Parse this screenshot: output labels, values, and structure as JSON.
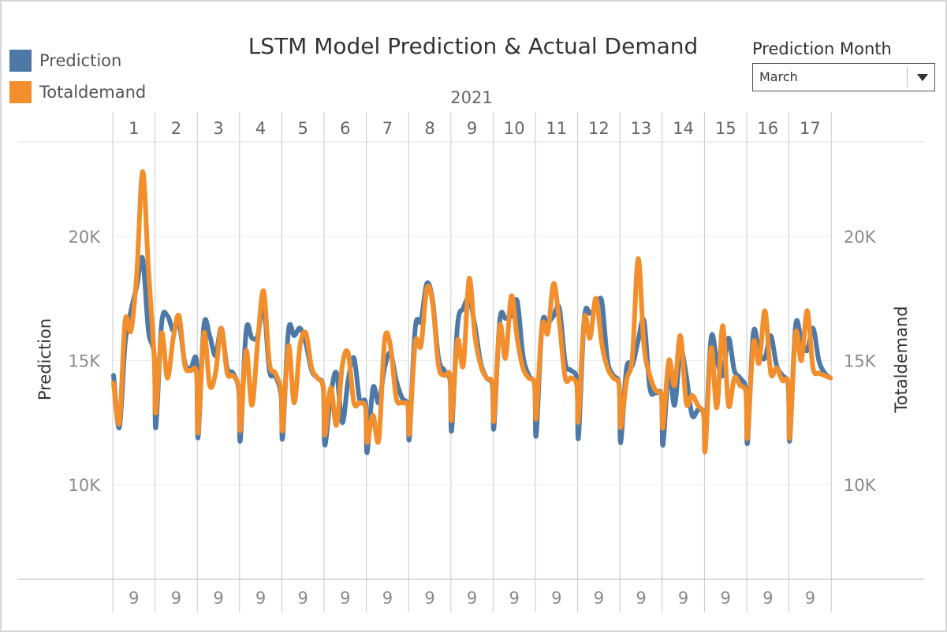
{
  "legend": {
    "items": [
      {
        "label": "Prediction",
        "color": "#4e79a7"
      },
      {
        "label": "Totaldemand",
        "color": "#f28e2b"
      }
    ]
  },
  "filter": {
    "title": "Prediction Month",
    "selected": "March"
  },
  "chart_data": {
    "type": "line",
    "title": "LSTM Model Prediction & Actual Demand",
    "header_label": "2021",
    "panels": [
      "1",
      "2",
      "3",
      "4",
      "5",
      "6",
      "7",
      "8",
      "9",
      "10",
      "11",
      "12",
      "13",
      "14",
      "15",
      "16",
      "17"
    ],
    "bottom_labels": [
      "9",
      "9",
      "9",
      "9",
      "9",
      "9",
      "9",
      "9",
      "9",
      "9",
      "9",
      "9",
      "9",
      "9",
      "9",
      "9",
      "9"
    ],
    "ylabel_left": "Prediction",
    "ylabel_right": "Totaldemand",
    "ylim": [
      6200,
      23800
    ],
    "yticks": [
      {
        "value": 10000,
        "label": "10K"
      },
      {
        "value": 15000,
        "label": "15K"
      },
      {
        "value": 20000,
        "label": "20K"
      }
    ],
    "grid": true,
    "legend_position": "top-left",
    "series": [
      {
        "name": "Prediction",
        "color": "#4e79a7",
        "values": [
          [
            14400,
            12300,
            15700,
            17000,
            18000,
            19100,
            16200,
            15200
          ],
          [
            12300,
            16500,
            16800,
            16200,
            16500,
            14900,
            14700,
            15000
          ],
          [
            11900,
            16400,
            16000,
            15200,
            16300,
            14700,
            14500,
            13800
          ],
          [
            11800,
            16200,
            15900,
            16000,
            17300,
            14600,
            14400,
            13600
          ],
          [
            11900,
            16200,
            16000,
            16300,
            15700,
            14600,
            14300,
            13900
          ],
          [
            11600,
            13600,
            14500,
            12500,
            14200,
            15100,
            13400,
            13300
          ],
          [
            11300,
            13900,
            13300,
            14700,
            15300,
            14200,
            13500,
            13200
          ],
          [
            11900,
            16300,
            16600,
            18100,
            17400,
            15100,
            14600,
            14200
          ],
          [
            12200,
            16400,
            17100,
            17500,
            16400,
            14900,
            14300,
            14000
          ],
          [
            12300,
            16600,
            16700,
            16800,
            17400,
            15200,
            14400,
            14000
          ],
          [
            12000,
            16400,
            16500,
            16800,
            17100,
            14900,
            14600,
            14200
          ],
          [
            11900,
            16700,
            16900,
            17100,
            17400,
            15000,
            14400,
            14000
          ],
          [
            11700,
            14700,
            14800,
            15800,
            16600,
            13900,
            13700,
            13600
          ],
          [
            11600,
            14600,
            13200,
            15400,
            14400,
            12800,
            13000,
            12900
          ],
          [
            11600,
            15900,
            15000,
            14400,
            15900,
            14600,
            14300,
            13800
          ],
          [
            11700,
            16100,
            15300,
            15100,
            16000,
            14800,
            14400,
            14000
          ],
          [
            11800,
            16400,
            15800,
            15400,
            16300,
            15000,
            14500,
            14300
          ]
        ]
      },
      {
        "name": "Totaldemand",
        "color": "#f28e2b",
        "values": [
          [
            14100,
            12500,
            16600,
            16200,
            18500,
            22600,
            18700,
            15100
          ],
          [
            12900,
            16100,
            14300,
            15900,
            16800,
            14800,
            14600,
            14500
          ],
          [
            12100,
            16100,
            14000,
            14500,
            16300,
            14500,
            14400,
            13900
          ],
          [
            12200,
            15400,
            13200,
            15800,
            17800,
            14900,
            14500,
            13800
          ],
          [
            12200,
            15600,
            13300,
            15600,
            16100,
            14700,
            14300,
            13900
          ],
          [
            12000,
            13900,
            12400,
            14800,
            15300,
            13300,
            13300,
            13100
          ],
          [
            11700,
            12800,
            11800,
            15800,
            15600,
            13500,
            13300,
            13200
          ],
          [
            12100,
            15700,
            15600,
            17900,
            17300,
            14800,
            14400,
            14400
          ],
          [
            12600,
            15800,
            14800,
            18300,
            16000,
            14800,
            14300,
            14100
          ],
          [
            12600,
            16400,
            15100,
            17600,
            15900,
            14700,
            14300,
            14100
          ],
          [
            12700,
            16400,
            16100,
            18100,
            16500,
            14300,
            14300,
            14000
          ],
          [
            12600,
            16700,
            15900,
            17500,
            15700,
            14700,
            14300,
            14000
          ],
          [
            12300,
            14200,
            15100,
            19100,
            15600,
            14400,
            13800,
            13600
          ],
          [
            12300,
            15000,
            14000,
            16000,
            13300,
            13600,
            13200,
            12800
          ],
          [
            11400,
            15500,
            13100,
            16400,
            13200,
            14300,
            14000,
            13700
          ],
          [
            11900,
            15700,
            14900,
            17000,
            14500,
            14700,
            14200,
            14100
          ],
          [
            11900,
            16100,
            15000,
            17000,
            14700,
            14500,
            14400,
            14300
          ]
        ]
      }
    ]
  }
}
